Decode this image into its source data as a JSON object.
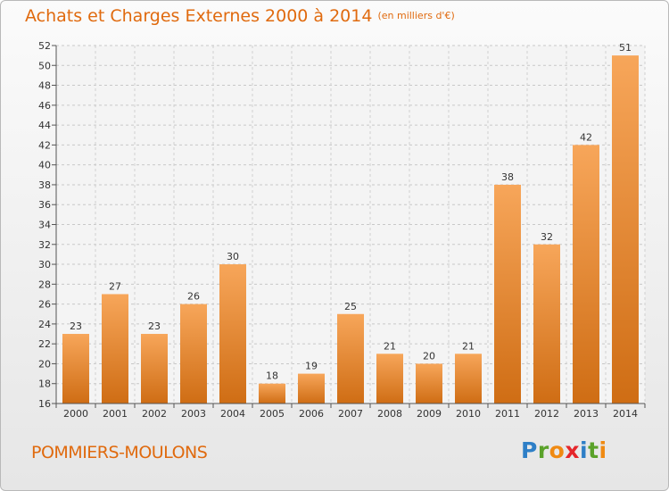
{
  "header": {
    "title": "Achats et Charges Externes 2000 à 2014",
    "subtitle": "(en milliers d'€)"
  },
  "footer": {
    "town": "POMMIERS-MOULONS",
    "logo_letters": [
      "P",
      "r",
      "o",
      "x",
      "i",
      "t",
      "i"
    ],
    "logo_colors": [
      "#2e7fc7",
      "#5aa22a",
      "#f08a12",
      "#e5262b",
      "#2e7fc7",
      "#5aa22a",
      "#f08a12"
    ]
  },
  "colors": {
    "accent": "#e06a0e",
    "bar_top": "#f7a65a",
    "bar_bottom": "#cf6d14"
  },
  "chart_data": {
    "type": "bar",
    "title": "Achats et Charges Externes 2000 à 2014",
    "subtitle": "(en milliers d'€)",
    "categories": [
      "2000",
      "2001",
      "2002",
      "2003",
      "2004",
      "2005",
      "2006",
      "2007",
      "2008",
      "2009",
      "2010",
      "2011",
      "2012",
      "2013",
      "2014"
    ],
    "values": [
      23,
      27,
      23,
      26,
      30,
      18,
      19,
      25,
      21,
      20,
      21,
      38,
      32,
      42,
      51
    ],
    "ylim": [
      16,
      52
    ],
    "yticks": [
      16,
      18,
      20,
      22,
      24,
      26,
      28,
      30,
      32,
      34,
      36,
      38,
      40,
      42,
      44,
      46,
      48,
      50,
      52
    ],
    "grid": true,
    "data_labels": true
  }
}
